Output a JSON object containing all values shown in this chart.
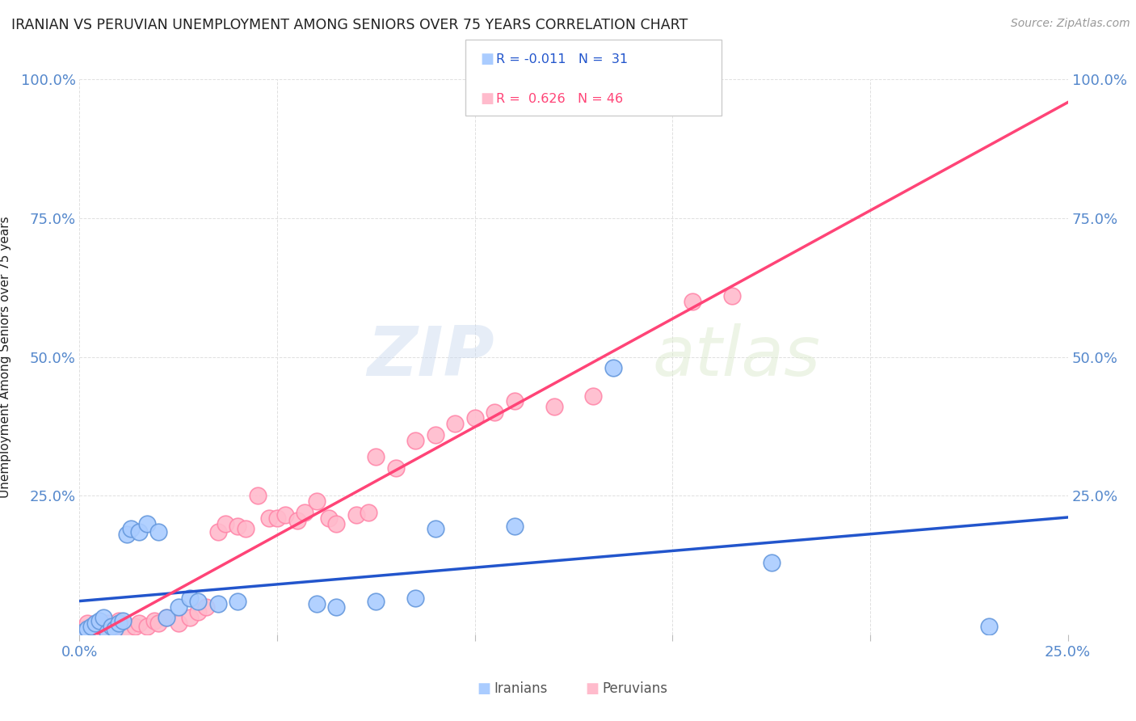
{
  "title": "IRANIAN VS PERUVIAN UNEMPLOYMENT AMONG SENIORS OVER 75 YEARS CORRELATION CHART",
  "source": "Source: ZipAtlas.com",
  "ylabel": "Unemployment Among Seniors over 75 years",
  "xlim": [
    0,
    0.25
  ],
  "ylim": [
    0,
    1.0
  ],
  "xticks": [
    0.0,
    0.05,
    0.1,
    0.15,
    0.2,
    0.25
  ],
  "yticks": [
    0.0,
    0.25,
    0.5,
    0.75,
    1.0
  ],
  "iranian_color": "#aaccff",
  "iranian_edge": "#6699dd",
  "peruvian_color": "#ffbbcc",
  "peruvian_edge": "#ff88aa",
  "line_iran_color": "#2255cc",
  "line_peru_color": "#ff4477",
  "line_peru_dash_color": "#ccaabb",
  "watermark_text": "ZIPatlas",
  "iranians_x": [
    0.001,
    0.002,
    0.003,
    0.004,
    0.005,
    0.006,
    0.007,
    0.008,
    0.009,
    0.01,
    0.011,
    0.012,
    0.013,
    0.015,
    0.017,
    0.02,
    0.022,
    0.025,
    0.028,
    0.03,
    0.035,
    0.04,
    0.06,
    0.065,
    0.075,
    0.085,
    0.09,
    0.11,
    0.135,
    0.175,
    0.23
  ],
  "iranians_y": [
    0.005,
    0.01,
    0.015,
    0.02,
    0.025,
    0.03,
    0.005,
    0.015,
    0.01,
    0.02,
    0.025,
    0.18,
    0.19,
    0.185,
    0.2,
    0.185,
    0.03,
    0.05,
    0.065,
    0.06,
    0.055,
    0.06,
    0.055,
    0.05,
    0.06,
    0.065,
    0.19,
    0.195,
    0.48,
    0.13,
    0.015
  ],
  "peruvians_x": [
    0.001,
    0.002,
    0.003,
    0.004,
    0.005,
    0.007,
    0.009,
    0.01,
    0.012,
    0.014,
    0.015,
    0.017,
    0.019,
    0.02,
    0.022,
    0.025,
    0.028,
    0.03,
    0.032,
    0.035,
    0.037,
    0.04,
    0.042,
    0.045,
    0.048,
    0.05,
    0.052,
    0.055,
    0.057,
    0.06,
    0.063,
    0.065,
    0.07,
    0.073,
    0.075,
    0.08,
    0.085,
    0.09,
    0.095,
    0.1,
    0.105,
    0.11,
    0.12,
    0.13,
    0.155,
    0.165
  ],
  "peruvians_y": [
    0.01,
    0.02,
    0.005,
    0.015,
    0.01,
    0.02,
    0.015,
    0.025,
    0.01,
    0.015,
    0.02,
    0.015,
    0.025,
    0.02,
    0.03,
    0.02,
    0.03,
    0.04,
    0.05,
    0.185,
    0.2,
    0.195,
    0.19,
    0.25,
    0.21,
    0.21,
    0.215,
    0.205,
    0.22,
    0.24,
    0.21,
    0.2,
    0.215,
    0.22,
    0.32,
    0.3,
    0.35,
    0.36,
    0.38,
    0.39,
    0.4,
    0.42,
    0.41,
    0.43,
    0.6,
    0.61
  ],
  "background_color": "#ffffff",
  "grid_color": "#e0e0e0",
  "title_color": "#222222",
  "tick_color": "#5588cc"
}
